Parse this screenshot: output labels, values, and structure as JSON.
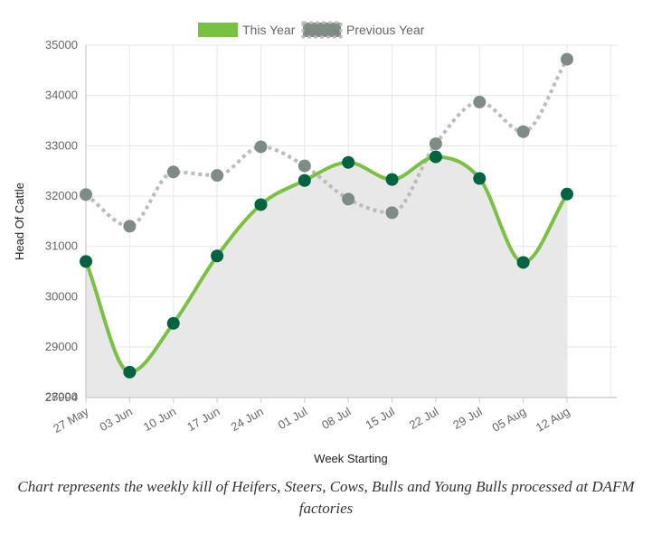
{
  "chart_data": {
    "type": "line",
    "title": "",
    "xlabel": "Week Starting",
    "ylabel": "Head Of Cattle",
    "categories": [
      "27 May",
      "03 Jun",
      "10 Jun",
      "17 Jun",
      "24 Jun",
      "01 Jul",
      "08 Jul",
      "15 Jul",
      "22 Jul",
      "29 Jul",
      "05 Aug",
      "12 Aug"
    ],
    "y_ticks": [
      "35000",
      "34000",
      "33000",
      "32000",
      "31000",
      "30000",
      "29000",
      "28000",
      "27994"
    ],
    "ylim": [
      27994,
      35000
    ],
    "grid": true,
    "legend_position": "top",
    "series": [
      {
        "name": "This Year",
        "values": [
          30700,
          28500,
          29470,
          30810,
          31830,
          32310,
          32670,
          32330,
          32780,
          32350,
          30680,
          32040
        ],
        "line_color": "#7ac143",
        "point_color": "#006341",
        "fill": "#e8e8e8",
        "style": "solid"
      },
      {
        "name": "Previous Year",
        "values": [
          32030,
          31400,
          32480,
          32410,
          32980,
          32600,
          31940,
          31670,
          33040,
          33870,
          33280,
          34720
        ],
        "line_color": "#bbbbbb",
        "point_color": "#7f8c86",
        "style": "dotted"
      }
    ]
  },
  "caption": "Chart represents the weekly kill of Heifers, Steers, Cows, Bulls and Young Bulls processed at DAFM factories"
}
